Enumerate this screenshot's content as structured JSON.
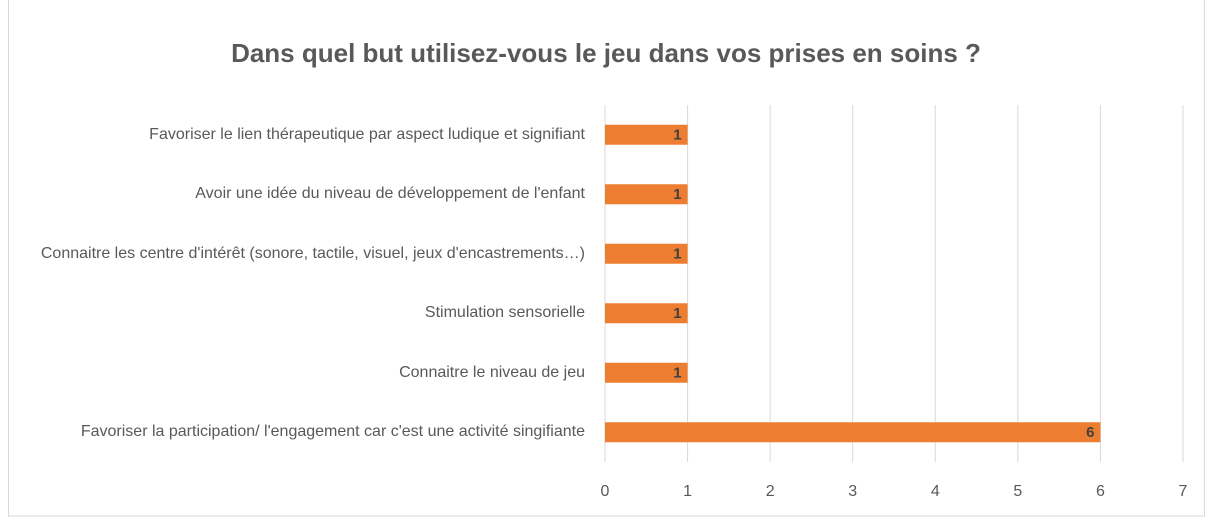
{
  "chart_data": {
    "type": "bar",
    "orientation": "horizontal",
    "title": "Dans quel but utilisez-vous le jeu dans vos prises en soins ?",
    "categories": [
      "Favoriser le lien thérapeutique par aspect ludique et signifiant",
      "Avoir une idée du niveau de développement de l'enfant",
      "Connaitre les centre d'intérêt (sonore, tactile, visuel, jeux d'encastrements…)",
      "Stimulation sensorielle",
      "Connaitre le niveau de jeu",
      "Favoriser la participation/ l'engagement car c'est une activité singifiante"
    ],
    "values": [
      1,
      1,
      1,
      1,
      1,
      6
    ],
    "color": "#ed7d31",
    "xlim": [
      0,
      7
    ],
    "xticks": [
      0,
      1,
      2,
      3,
      4,
      5,
      6,
      7
    ],
    "grid": true
  }
}
